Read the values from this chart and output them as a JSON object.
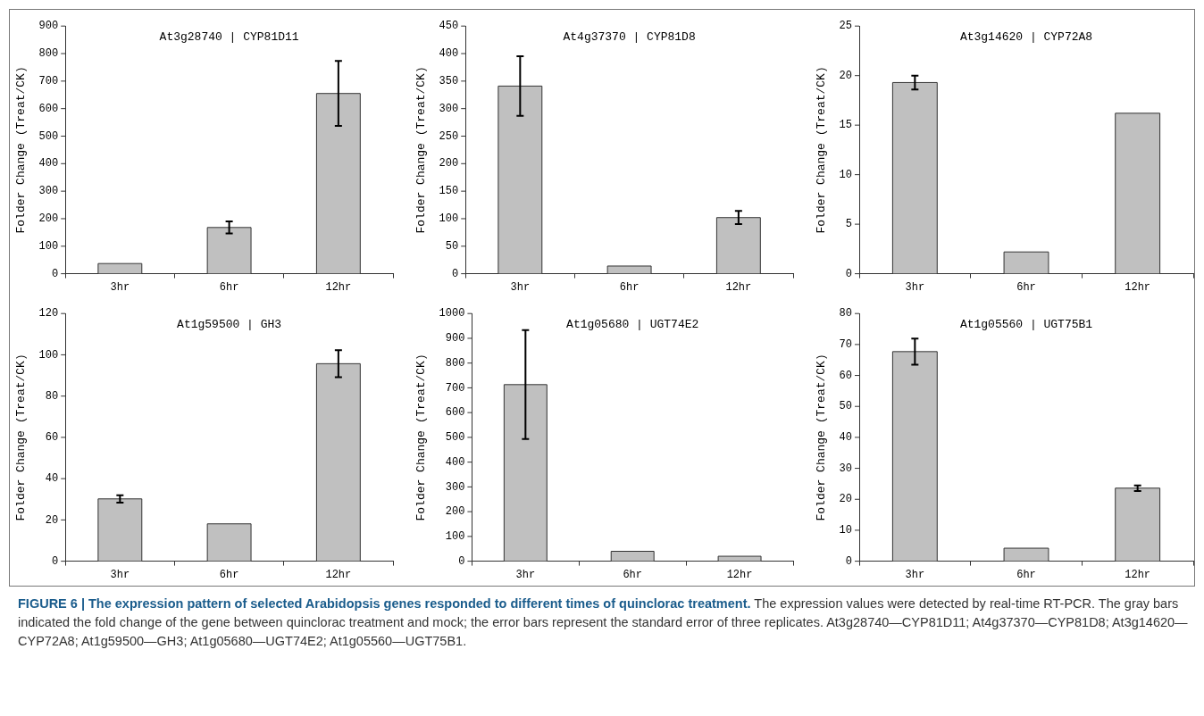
{
  "chart_data": [
    {
      "type": "bar",
      "title": "At3g28740 | CYP81D11",
      "ylabel": "Folder Change (Treat/CK)",
      "categories": [
        "3hr",
        "6hr",
        "12hr"
      ],
      "values": [
        37,
        168,
        655
      ],
      "errors": [
        null,
        22,
        118
      ],
      "color": "#c0c0c0",
      "ylim": [
        0,
        900
      ],
      "yticks": [
        0,
        100,
        200,
        300,
        400,
        500,
        600,
        700,
        800,
        900
      ],
      "annotations": [
        "FIGURE 6 | The expression pattern of selected Arabidopsis genes responded to different times of quinclorac treatment.",
        "The expression values were detected by real-time RT-PCR. The gray bars indicated the fold change of the gene between quinclorac treatment and mock; the error bars represent the standard error of three replicates. At3g28740—CYP81D11; At4g37370—CYP81D8; At3g14620—CYP72A8; At1g59500—GH3; At1g05680—UGT74E2; At1g05560—UGT75B1."
      ]
    },
    {
      "type": "bar",
      "title": "At4g37370 | CYP81D8",
      "ylabel": "Folder Change (Treat/CK)",
      "categories": [
        "3hr",
        "6hr",
        "12hr"
      ],
      "values": [
        341,
        14,
        102
      ],
      "errors": [
        54,
        null,
        12
      ],
      "color": "#c0c0c0",
      "ylim": [
        0,
        450
      ],
      "yticks": [
        0,
        50,
        100,
        150,
        200,
        250,
        300,
        350,
        400,
        450
      ]
    },
    {
      "type": "bar",
      "title": "At3g14620 | CYP72A8",
      "ylabel": "Folder Change (Treat/CK)",
      "categories": [
        "3hr",
        "6hr",
        "12hr"
      ],
      "values": [
        19.3,
        2.2,
        16.2
      ],
      "errors": [
        0.7,
        null,
        null
      ],
      "color": "#c0c0c0",
      "ylim": [
        0,
        25
      ],
      "yticks": [
        0,
        5,
        10,
        15,
        20,
        25
      ]
    },
    {
      "type": "bar",
      "title": "At1g59500 | GH3",
      "ylabel": "Folder Change (Treat/CK)",
      "categories": [
        "3hr",
        "6hr",
        "12hr"
      ],
      "values": [
        30.2,
        18.1,
        95.7
      ],
      "errors": [
        1.8,
        null,
        6.5
      ],
      "color": "#c0c0c0",
      "ylim": [
        0,
        120
      ],
      "yticks": [
        0,
        20,
        40,
        60,
        80,
        100,
        120
      ]
    },
    {
      "type": "bar",
      "title": "At1g05680 | UGT74E2",
      "ylabel": "Folder Change (Treat/CK)",
      "categories": [
        "3hr",
        "6hr",
        "12hr"
      ],
      "values": [
        713,
        40,
        20
      ],
      "errors": [
        220,
        null,
        null
      ],
      "color": "#c0c0c0",
      "ylim": [
        0,
        1000
      ],
      "yticks": [
        0,
        100,
        200,
        300,
        400,
        500,
        600,
        700,
        800,
        900,
        1000
      ]
    },
    {
      "type": "bar",
      "title": "At1g05560 | UGT75B1",
      "ylabel": "Folder Change (Treat/CK)",
      "categories": [
        "3hr",
        "6hr",
        "12hr"
      ],
      "values": [
        67.7,
        4.2,
        23.6
      ],
      "errors": [
        4.2,
        null,
        0.9
      ],
      "color": "#c0c0c0",
      "ylim": [
        0,
        80
      ],
      "yticks": [
        0,
        10,
        20,
        30,
        40,
        50,
        60,
        70,
        80
      ]
    }
  ]
}
